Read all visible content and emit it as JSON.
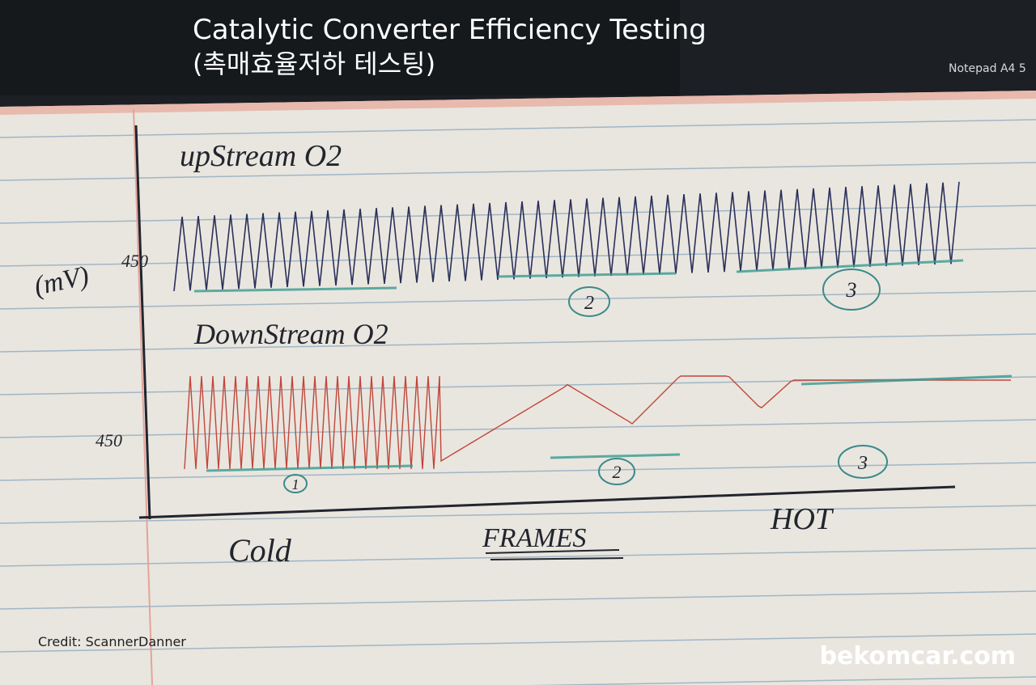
{
  "header": {
    "title": "Catalytic Converter Efficiency Testing",
    "subtitle": "(촉매효율저하 테스팅)",
    "pad_label": "Notepad A4 5"
  },
  "sketch": {
    "upstream_label": "upStream O2",
    "unit": "(mV)",
    "upstream_mark": "450",
    "downstream_label": "DownStream O2",
    "downstream_mark": "450",
    "upstream_circles": [
      "2",
      "3"
    ],
    "downstream_circles": [
      "1",
      "2",
      "3"
    ],
    "x_left": "Cold",
    "x_center": "FRAMES",
    "x_right": "HOT"
  },
  "footer": {
    "credit": "Credit: ScannerDanner",
    "watermark": "bekomcar.com"
  }
}
